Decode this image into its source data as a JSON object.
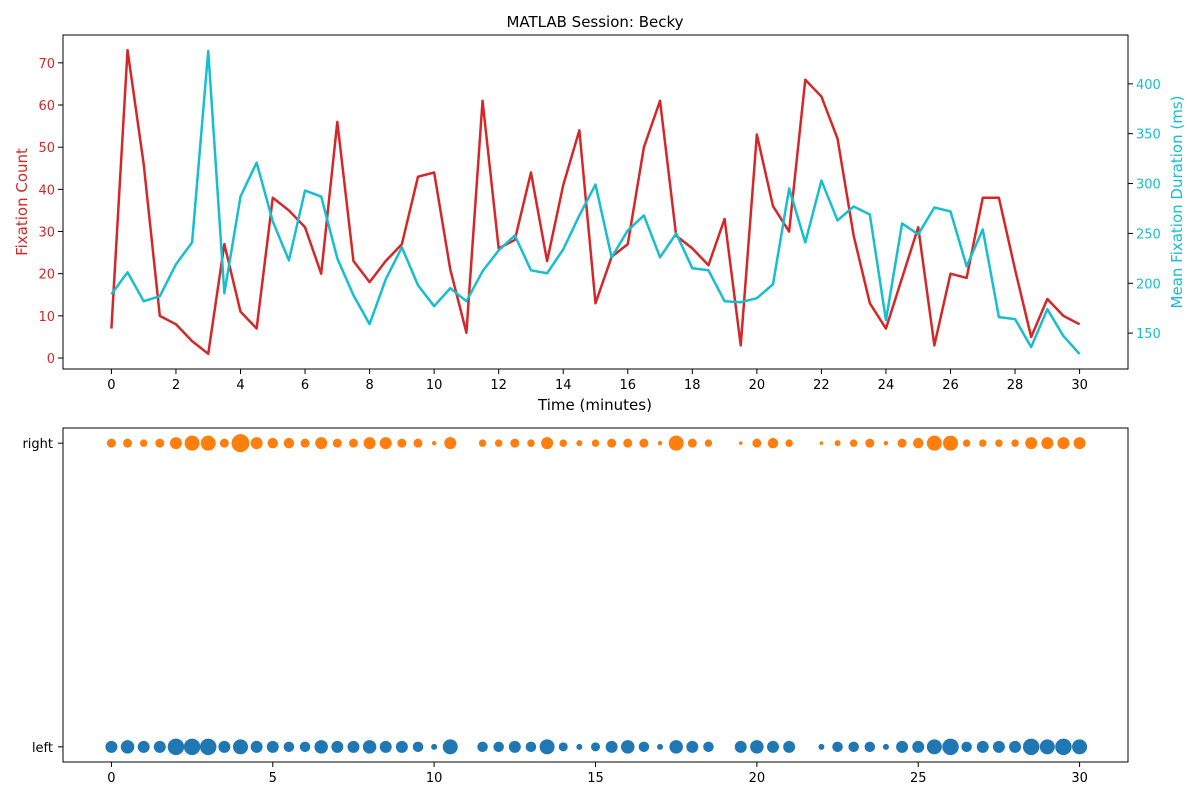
{
  "figure": {
    "title": "MATLAB Session: Becky"
  },
  "chart_data": [
    {
      "type": "line",
      "title": "MATLAB Session: Becky",
      "xlabel": "Time (minutes)",
      "ylabel_left": "Fixation Count",
      "ylabel_right": "Mean Fixation Duration (ms)",
      "xlim": [
        -1.5,
        31.5
      ],
      "ylim_left": [
        -2.6,
        76.6
      ],
      "ylim_right": [
        114,
        449
      ],
      "x_ticks": [
        0,
        2,
        4,
        6,
        8,
        10,
        12,
        14,
        16,
        18,
        20,
        22,
        24,
        26,
        28,
        30
      ],
      "y_ticks_left": [
        0,
        10,
        20,
        30,
        40,
        50,
        60,
        70
      ],
      "y_ticks_right": [
        150,
        200,
        250,
        300,
        350,
        400
      ],
      "grid": false,
      "colors": {
        "left": "#d62728",
        "right": "#17becf"
      },
      "x": [
        0,
        0.5,
        1,
        1.5,
        2,
        2.5,
        3,
        3.5,
        4,
        4.5,
        5,
        5.5,
        6,
        6.5,
        7,
        7.5,
        8,
        8.5,
        9,
        9.5,
        10,
        10.5,
        11,
        11.5,
        12,
        12.5,
        13,
        13.5,
        14,
        14.5,
        15,
        15.5,
        16,
        16.5,
        17,
        17.5,
        18,
        18.5,
        19,
        19.5,
        20,
        20.5,
        21,
        21.5,
        22,
        22.5,
        23,
        23.5,
        24,
        24.5,
        25,
        25.5,
        26,
        26.5,
        27,
        27.5,
        28,
        28.5,
        29,
        29.5,
        30
      ],
      "series": [
        {
          "name": "Fixation Count",
          "axis": "left",
          "values": [
            7,
            73,
            46,
            10,
            8,
            4,
            1,
            27,
            11,
            7,
            38,
            35,
            31,
            20,
            56,
            23,
            18,
            23,
            27,
            43,
            44,
            21,
            6,
            61,
            26,
            28,
            44,
            23,
            41,
            54,
            13,
            24,
            27,
            50,
            61,
            29,
            26,
            22,
            33,
            3,
            53,
            36,
            30,
            66,
            62,
            52,
            29,
            13,
            7,
            19,
            31,
            3,
            20,
            19,
            38,
            38,
            21,
            5,
            14,
            10,
            8
          ]
        },
        {
          "name": "Mean Fixation Duration (ms)",
          "axis": "right",
          "values": [
            189,
            211,
            182,
            187,
            219,
            241,
            433,
            190,
            287,
            321,
            262,
            223,
            293,
            287,
            225,
            188,
            159,
            204,
            236,
            198,
            177,
            195,
            182,
            212,
            233,
            248,
            213,
            210,
            234,
            268,
            299,
            226,
            253,
            268,
            226,
            250,
            215,
            213,
            182,
            181,
            185,
            199,
            295,
            241,
            303,
            263,
            277,
            269,
            163,
            260,
            249,
            276,
            272,
            217,
            254,
            166,
            164,
            136,
            174,
            147,
            129
          ]
        }
      ]
    },
    {
      "type": "scatter",
      "xlim": [
        -1.5,
        31.5
      ],
      "x_ticks": [
        0,
        5,
        10,
        15,
        20,
        25,
        30
      ],
      "categories": [
        "left",
        "right"
      ],
      "grid": false,
      "colors": {
        "left": "#1f77b4",
        "right": "#ff7f0e"
      },
      "size_encoding": "fixation count per interval",
      "series": [
        {
          "category": "right",
          "x": [
            0,
            0.5,
            1,
            1.5,
            2,
            2.5,
            3,
            3.5,
            4,
            4.5,
            5,
            5.5,
            6,
            6.5,
            7,
            7.5,
            8,
            8.5,
            9,
            9.5,
            10,
            10.5,
            11.5,
            12,
            12.5,
            13,
            13.5,
            14,
            14.5,
            15,
            15.5,
            16,
            16.5,
            17,
            17.5,
            18,
            18.5,
            19.5,
            20,
            20.5,
            21,
            22,
            22.5,
            23,
            23.5,
            24,
            24.5,
            25,
            25.5,
            26,
            26.5,
            27,
            27.5,
            28,
            28.5,
            29,
            29.5,
            30
          ],
          "sizes": [
            3,
            3,
            2.5,
            3,
            4,
            5,
            5,
            3,
            6,
            4,
            3.5,
            3.5,
            3,
            4,
            3,
            3,
            4,
            4,
            3,
            3,
            1.5,
            4,
            2.5,
            2.5,
            3,
            2.5,
            4,
            2.5,
            2,
            2.5,
            3,
            3,
            3,
            1.5,
            5,
            3,
            2.5,
            1.2,
            3,
            3.5,
            2.5,
            1.2,
            2,
            2.5,
            3,
            1.5,
            3,
            3.5,
            5,
            5,
            2.5,
            2.5,
            2.5,
            2.5,
            4,
            4,
            4,
            4
          ]
        },
        {
          "category": "left",
          "x": [
            0,
            0.5,
            1,
            1.5,
            2,
            2.5,
            3,
            3.5,
            4,
            4.5,
            5,
            5.5,
            6,
            6.5,
            7,
            7.5,
            8,
            8.5,
            9,
            9.5,
            10,
            10.5,
            11.5,
            12,
            12.5,
            13,
            13.5,
            14,
            14.5,
            15,
            15.5,
            16,
            16.5,
            17,
            17.5,
            18,
            18.5,
            19.5,
            20,
            20.5,
            21,
            22,
            22.5,
            23,
            23.5,
            24,
            24.5,
            25,
            25.5,
            26,
            26.5,
            27,
            27.5,
            28,
            28.5,
            29,
            29.5,
            30
          ],
          "sizes": [
            4,
            4.5,
            4,
            4,
            5.5,
            5.5,
            5.5,
            4,
            5,
            4,
            4,
            3.5,
            3.5,
            4.5,
            4,
            4,
            4.5,
            4,
            4,
            3.5,
            2,
            5,
            3.5,
            3.5,
            4,
            3.5,
            5,
            3,
            2,
            3,
            4,
            4.5,
            3.5,
            2,
            4.5,
            4,
            3.5,
            4,
            4.5,
            4,
            4,
            2,
            3.5,
            3.5,
            3.5,
            2,
            4,
            4,
            5,
            5.5,
            3.5,
            4,
            4,
            4,
            5.5,
            5,
            5.5,
            5
          ]
        }
      ]
    }
  ]
}
